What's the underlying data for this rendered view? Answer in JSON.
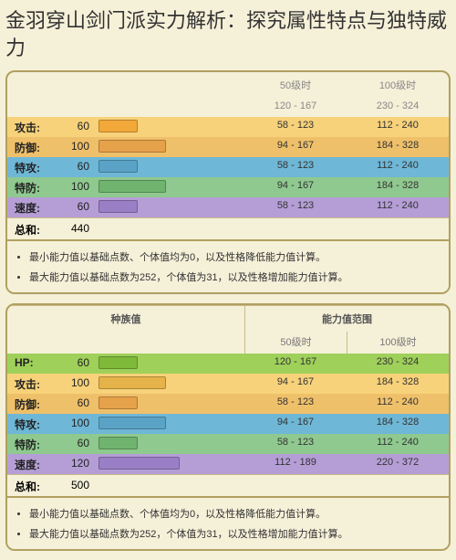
{
  "title": "金羽穿山剑门派实力解析：探究属性特点与独特威力",
  "headers": {
    "species": "种族值",
    "range": "能力值范围",
    "lv50": "50级时",
    "lv100": "100级时",
    "total": "总和:"
  },
  "section1": {
    "hp_ghost": {
      "r50": "120 - 167",
      "r100": "230 - 324"
    },
    "rows": [
      {
        "name": "攻击:",
        "val": 60,
        "bar_pct": 28,
        "row_bg": "#f7d27a",
        "bar_color": "#f2a93a",
        "r50": "58 - 123",
        "r100": "112 - 240"
      },
      {
        "name": "防御:",
        "val": 100,
        "bar_pct": 48,
        "row_bg": "#efc06a",
        "bar_color": "#e6a24a",
        "r50": "94 - 167",
        "r100": "184 - 328"
      },
      {
        "name": "特攻:",
        "val": 60,
        "bar_pct": 28,
        "row_bg": "#6fb7d6",
        "bar_color": "#5aa3c6",
        "r50": "58 - 123",
        "r100": "112 - 240"
      },
      {
        "name": "特防:",
        "val": 100,
        "bar_pct": 48,
        "row_bg": "#8fc98f",
        "bar_color": "#6fb36f",
        "r50": "94 - 167",
        "r100": "184 - 328"
      },
      {
        "name": "速度:",
        "val": 60,
        "bar_pct": 28,
        "row_bg": "#b59ed6",
        "bar_color": "#9a7fc6",
        "r50": "58 - 123",
        "r100": "112 - 240"
      }
    ],
    "total": 440
  },
  "section2": {
    "rows": [
      {
        "name": "HP:",
        "val": 60,
        "bar_pct": 28,
        "row_bg": "#9fd05a",
        "bar_color": "#7fb93a",
        "r50": "120 - 167",
        "r100": "230 - 324"
      },
      {
        "name": "攻击:",
        "val": 100,
        "bar_pct": 48,
        "row_bg": "#f7d27a",
        "bar_color": "#e6b24a",
        "r50": "94 - 167",
        "r100": "184 - 328"
      },
      {
        "name": "防御:",
        "val": 60,
        "bar_pct": 28,
        "row_bg": "#efc06a",
        "bar_color": "#e6a24a",
        "r50": "58 - 123",
        "r100": "112 - 240"
      },
      {
        "name": "特攻:",
        "val": 100,
        "bar_pct": 48,
        "row_bg": "#6fb7d6",
        "bar_color": "#5aa3c6",
        "r50": "94 - 167",
        "r100": "184 - 328"
      },
      {
        "name": "特防:",
        "val": 60,
        "bar_pct": 28,
        "row_bg": "#8fc98f",
        "bar_color": "#6fb36f",
        "r50": "58 - 123",
        "r100": "112 - 240"
      },
      {
        "name": "速度:",
        "val": 120,
        "bar_pct": 58,
        "row_bg": "#b59ed6",
        "bar_color": "#9a7fc6",
        "r50": "112 - 189",
        "r100": "220 - 372"
      }
    ],
    "total": 500
  },
  "notes": [
    "最小能力值以基础点数、个体值均为0，以及性格降低能力值计算。",
    "最大能力值以基础点数为252，个体值为31，以及性格增加能力值计算。"
  ]
}
